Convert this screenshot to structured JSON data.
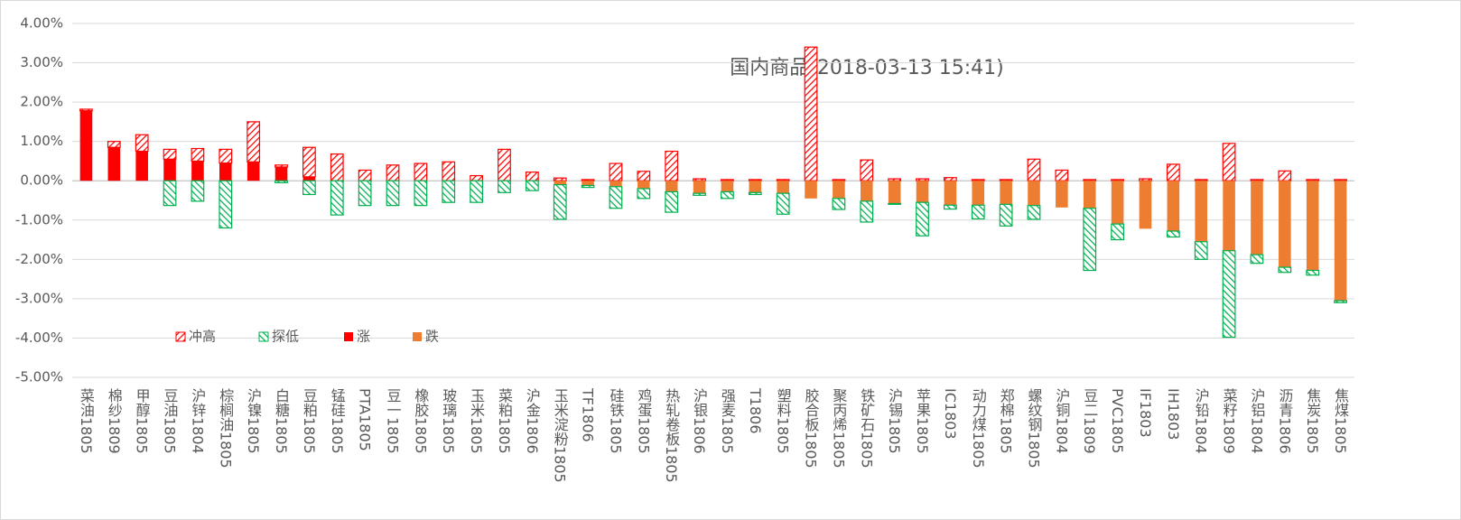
{
  "chart_data": {
    "type": "stacked-bar",
    "title": "国内商品(2018-03-13 15:41)",
    "categories": [
      "菜油1805",
      "棉纱1809",
      "甲醇1805",
      "豆油1805",
      "沪锌1804",
      "棕榈油1805",
      "沪镍1805",
      "白糖1805",
      "豆粕1805",
      "锰硅1805",
      "PTA1805",
      "豆一1805",
      "橡胶1805",
      "玻璃1805",
      "玉米1805",
      "菜粕1805",
      "沪金1806",
      "玉米淀粉1805",
      "TF1806",
      "硅铁1805",
      "鸡蛋1805",
      "热轧卷板1805",
      "沪银1806",
      "强麦1805",
      "T1806",
      "塑料1805",
      "胶合板1805",
      "聚丙烯1805",
      "铁矿石1805",
      "沪锡1805",
      "苹果1805",
      "IC1803",
      "动力煤1805",
      "郑棉1805",
      "螺纹钢1805",
      "沪铜1804",
      "豆二1809",
      "PVC1805",
      "IF1803",
      "IH1803",
      "沪铅1804",
      "菜籽1809",
      "沪铝1804",
      "沥青1806",
      "焦炭1805",
      "焦煤1805"
    ],
    "series": [
      {
        "name": "冲高",
        "color": "#ff0000",
        "hatched": true,
        "stack": "up",
        "values": [
          0.04,
          0.15,
          0.42,
          0.25,
          0.32,
          0.35,
          1.02,
          0.05,
          0.75,
          0.68,
          0.27,
          0.4,
          0.44,
          0.48,
          0.13,
          0.8,
          0.22,
          0.07,
          0.03,
          0.44,
          0.24,
          0.75,
          0.05,
          0.03,
          0.03,
          0.03,
          3.4,
          0.03,
          0.53,
          0.05,
          0.05,
          0.08,
          0.03,
          0.03,
          0.55,
          0.27,
          0.03,
          0.03,
          0.05,
          0.42,
          0.03,
          0.95,
          0.03,
          0.25,
          0.03,
          0.03
        ]
      },
      {
        "name": "探低",
        "color": "#00b050",
        "hatched": true,
        "stack": "down",
        "values": [
          0,
          0,
          0,
          -0.63,
          -0.52,
          -1.2,
          0,
          -0.05,
          -0.35,
          -0.87,
          -0.63,
          -0.63,
          -0.63,
          -0.55,
          -0.55,
          -0.3,
          -0.25,
          -0.88,
          -0.05,
          -0.55,
          -0.25,
          -0.52,
          -0.05,
          -0.17,
          -0.05,
          -0.53,
          0,
          -0.28,
          -0.53,
          -0.02,
          -0.85,
          -0.1,
          -0.35,
          -0.55,
          -0.35,
          0,
          -1.58,
          -0.4,
          0,
          -0.15,
          -0.45,
          -2.2,
          -0.22,
          -0.13,
          -0.12,
          -0.05
        ]
      },
      {
        "name": "涨",
        "color": "#ff0000",
        "hatched": false,
        "stack": "up",
        "values": [
          1.78,
          0.85,
          0.75,
          0.55,
          0.5,
          0.45,
          0.48,
          0.35,
          0.1,
          0,
          0,
          0,
          0,
          0,
          0,
          0,
          0,
          0,
          0,
          0,
          0,
          0,
          0,
          0,
          0,
          0,
          0,
          0,
          0,
          0,
          0,
          0,
          0,
          0,
          0,
          0,
          0,
          0,
          0,
          0,
          0,
          0,
          0,
          0,
          0,
          0
        ]
      },
      {
        "name": "跌",
        "color": "#ed7d31",
        "hatched": false,
        "stack": "down",
        "values": [
          0,
          0,
          0,
          0,
          0,
          0,
          0,
          0,
          0,
          0,
          0,
          0,
          0,
          0,
          0,
          0,
          0,
          -0.1,
          -0.12,
          -0.15,
          -0.2,
          -0.28,
          -0.32,
          -0.28,
          -0.3,
          -0.32,
          -0.45,
          -0.45,
          -0.52,
          -0.58,
          -0.55,
          -0.62,
          -0.62,
          -0.6,
          -0.63,
          -0.68,
          -0.7,
          -1.1,
          -1.22,
          -1.28,
          -1.55,
          -1.78,
          -1.88,
          -2.2,
          -2.28,
          -3.05
        ]
      }
    ],
    "ylim": [
      -5,
      4
    ],
    "yticks": [
      {
        "value": -5,
        "label": "-5.00%"
      },
      {
        "value": -4,
        "label": "-4.00%"
      },
      {
        "value": -3,
        "label": "-3.00%"
      },
      {
        "value": -2,
        "label": "-2.00%"
      },
      {
        "value": -1,
        "label": "-1.00%"
      },
      {
        "value": 0,
        "label": "0.00%"
      },
      {
        "value": 1,
        "label": "1.00%"
      },
      {
        "value": 2,
        "label": "2.00%"
      },
      {
        "value": 3,
        "label": "3.00%"
      },
      {
        "value": 4,
        "label": "4.00%"
      }
    ],
    "grid": true,
    "legend": "lower-left"
  }
}
